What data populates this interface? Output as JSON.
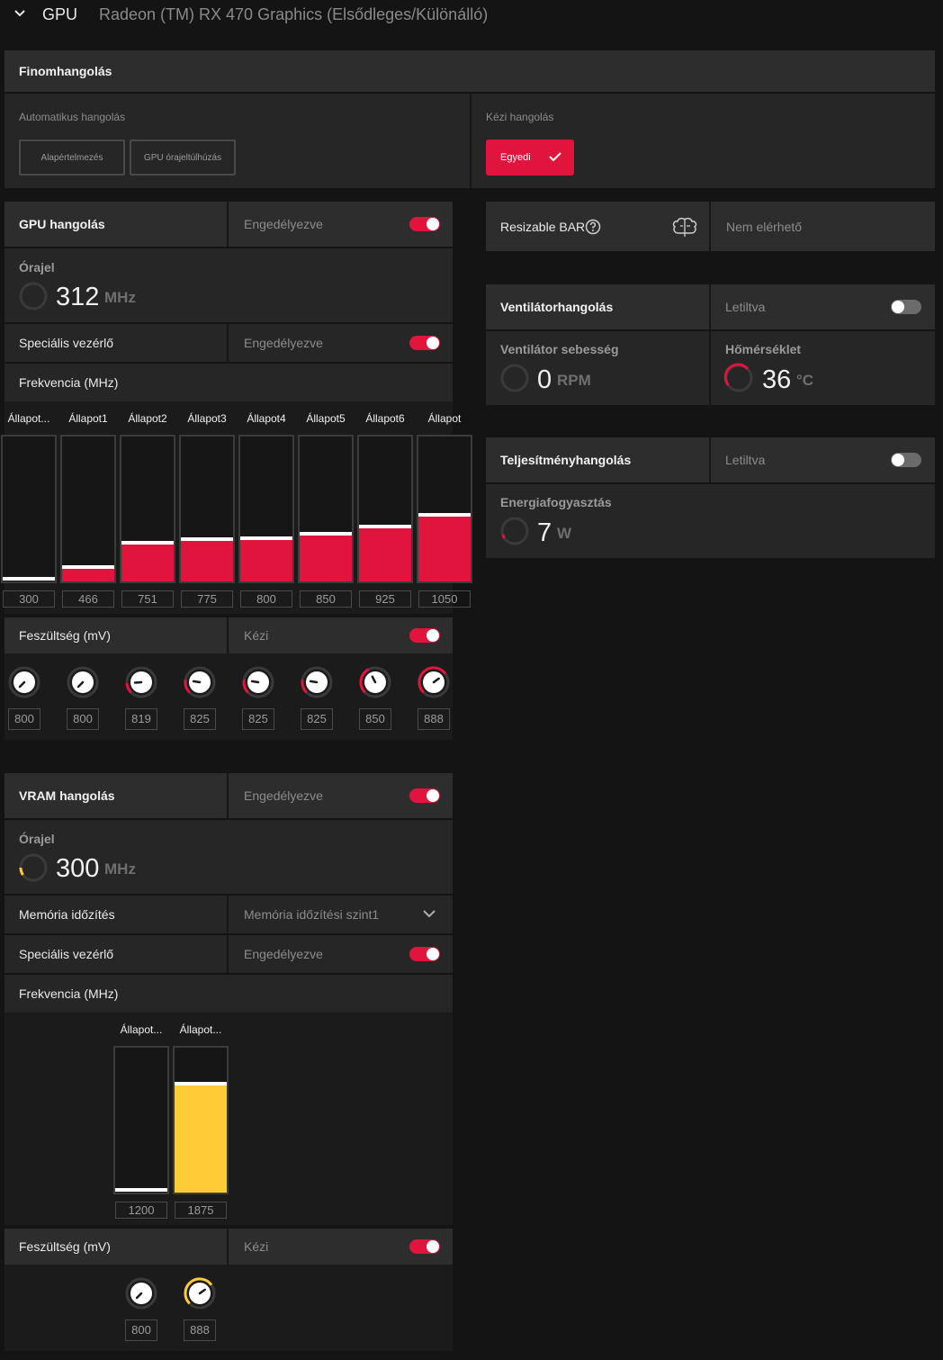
{
  "header": {
    "section": "GPU",
    "device_name": "Radeon (TM) RX 470 Graphics (Elsődleges/Különálló)"
  },
  "tuning": {
    "title": "Finomhangolás",
    "auto_label": "Automatikus hangolás",
    "auto_buttons": [
      "Alapértelmezés",
      "GPU órajeltúlhúzás"
    ],
    "manual_label": "Kézi hangolás",
    "manual_button": "Egyedi"
  },
  "gpu_tuning": {
    "title": "GPU hangolás",
    "status": "Engedélyezve",
    "enabled": true,
    "clock_label": "Órajel",
    "clock_value": "312",
    "clock_unit": "MHz",
    "advanced_label": "Speciális vezérlő",
    "advanced_status": "Engedélyezve",
    "advanced_enabled": true,
    "freq_label": "Frekvencia (MHz)",
    "state_labels": [
      "Állapot...",
      "Állapot1",
      "Állapot2",
      "Állapot3",
      "Állapot4",
      "Állapot5",
      "Állapot6",
      "Állapot"
    ],
    "freq_values": [
      "300",
      "466",
      "751",
      "775",
      "800",
      "850",
      "925",
      "1050"
    ],
    "freq_fill_fraction": [
      0.0,
      0.1,
      0.27,
      0.29,
      0.3,
      0.33,
      0.38,
      0.46
    ],
    "voltage_label": "Feszültség (mV)",
    "voltage_mode": "Kézi",
    "voltage_enabled": true,
    "voltage_values": [
      "800",
      "800",
      "819",
      "825",
      "825",
      "825",
      "850",
      "888"
    ],
    "voltage_level_fraction": [
      0.0,
      0.0,
      0.15,
      0.2,
      0.2,
      0.2,
      0.4,
      0.7
    ]
  },
  "vram_tuning": {
    "title": "VRAM hangolás",
    "status": "Engedélyezve",
    "enabled": true,
    "clock_label": "Órajel",
    "clock_value": "300",
    "clock_unit": "MHz",
    "timing_label": "Memória időzítés",
    "timing_value": "Memória időzítési szint1",
    "advanced_label": "Speciális vezérlő",
    "advanced_status": "Engedélyezve",
    "advanced_enabled": true,
    "freq_label": "Frekvencia (MHz)",
    "state_labels": [
      "Állapot...",
      "Állapot..."
    ],
    "freq_values": [
      "1200",
      "1875"
    ],
    "freq_fill_fraction": [
      0.0,
      0.75
    ],
    "voltage_label": "Feszültség (mV)",
    "voltage_mode": "Kézi",
    "voltage_enabled": true,
    "voltage_values": [
      "800",
      "888"
    ],
    "voltage_level_fraction": [
      0.0,
      0.7
    ]
  },
  "resizable_bar": {
    "label": "Resizable BAR",
    "status": "Nem elérhető"
  },
  "fan_tuning": {
    "title": "Ventilátorhangolás",
    "status": "Letiltva",
    "enabled": false,
    "speed_label": "Ventilátor sebesség",
    "speed_value": "0",
    "speed_unit": "RPM",
    "temp_label": "Hőmérséklet",
    "temp_value": "36",
    "temp_unit": "°C"
  },
  "power_tuning": {
    "title": "Teljesítményhangolás",
    "status": "Letiltva",
    "enabled": false,
    "power_label": "Energiafogyasztás",
    "power_value": "7",
    "power_unit": "W"
  },
  "colors": {
    "accent_red": "#e0143c",
    "accent_yellow": "#ffcb37",
    "panel": "#262626",
    "panel_header": "#2d2d2d"
  }
}
